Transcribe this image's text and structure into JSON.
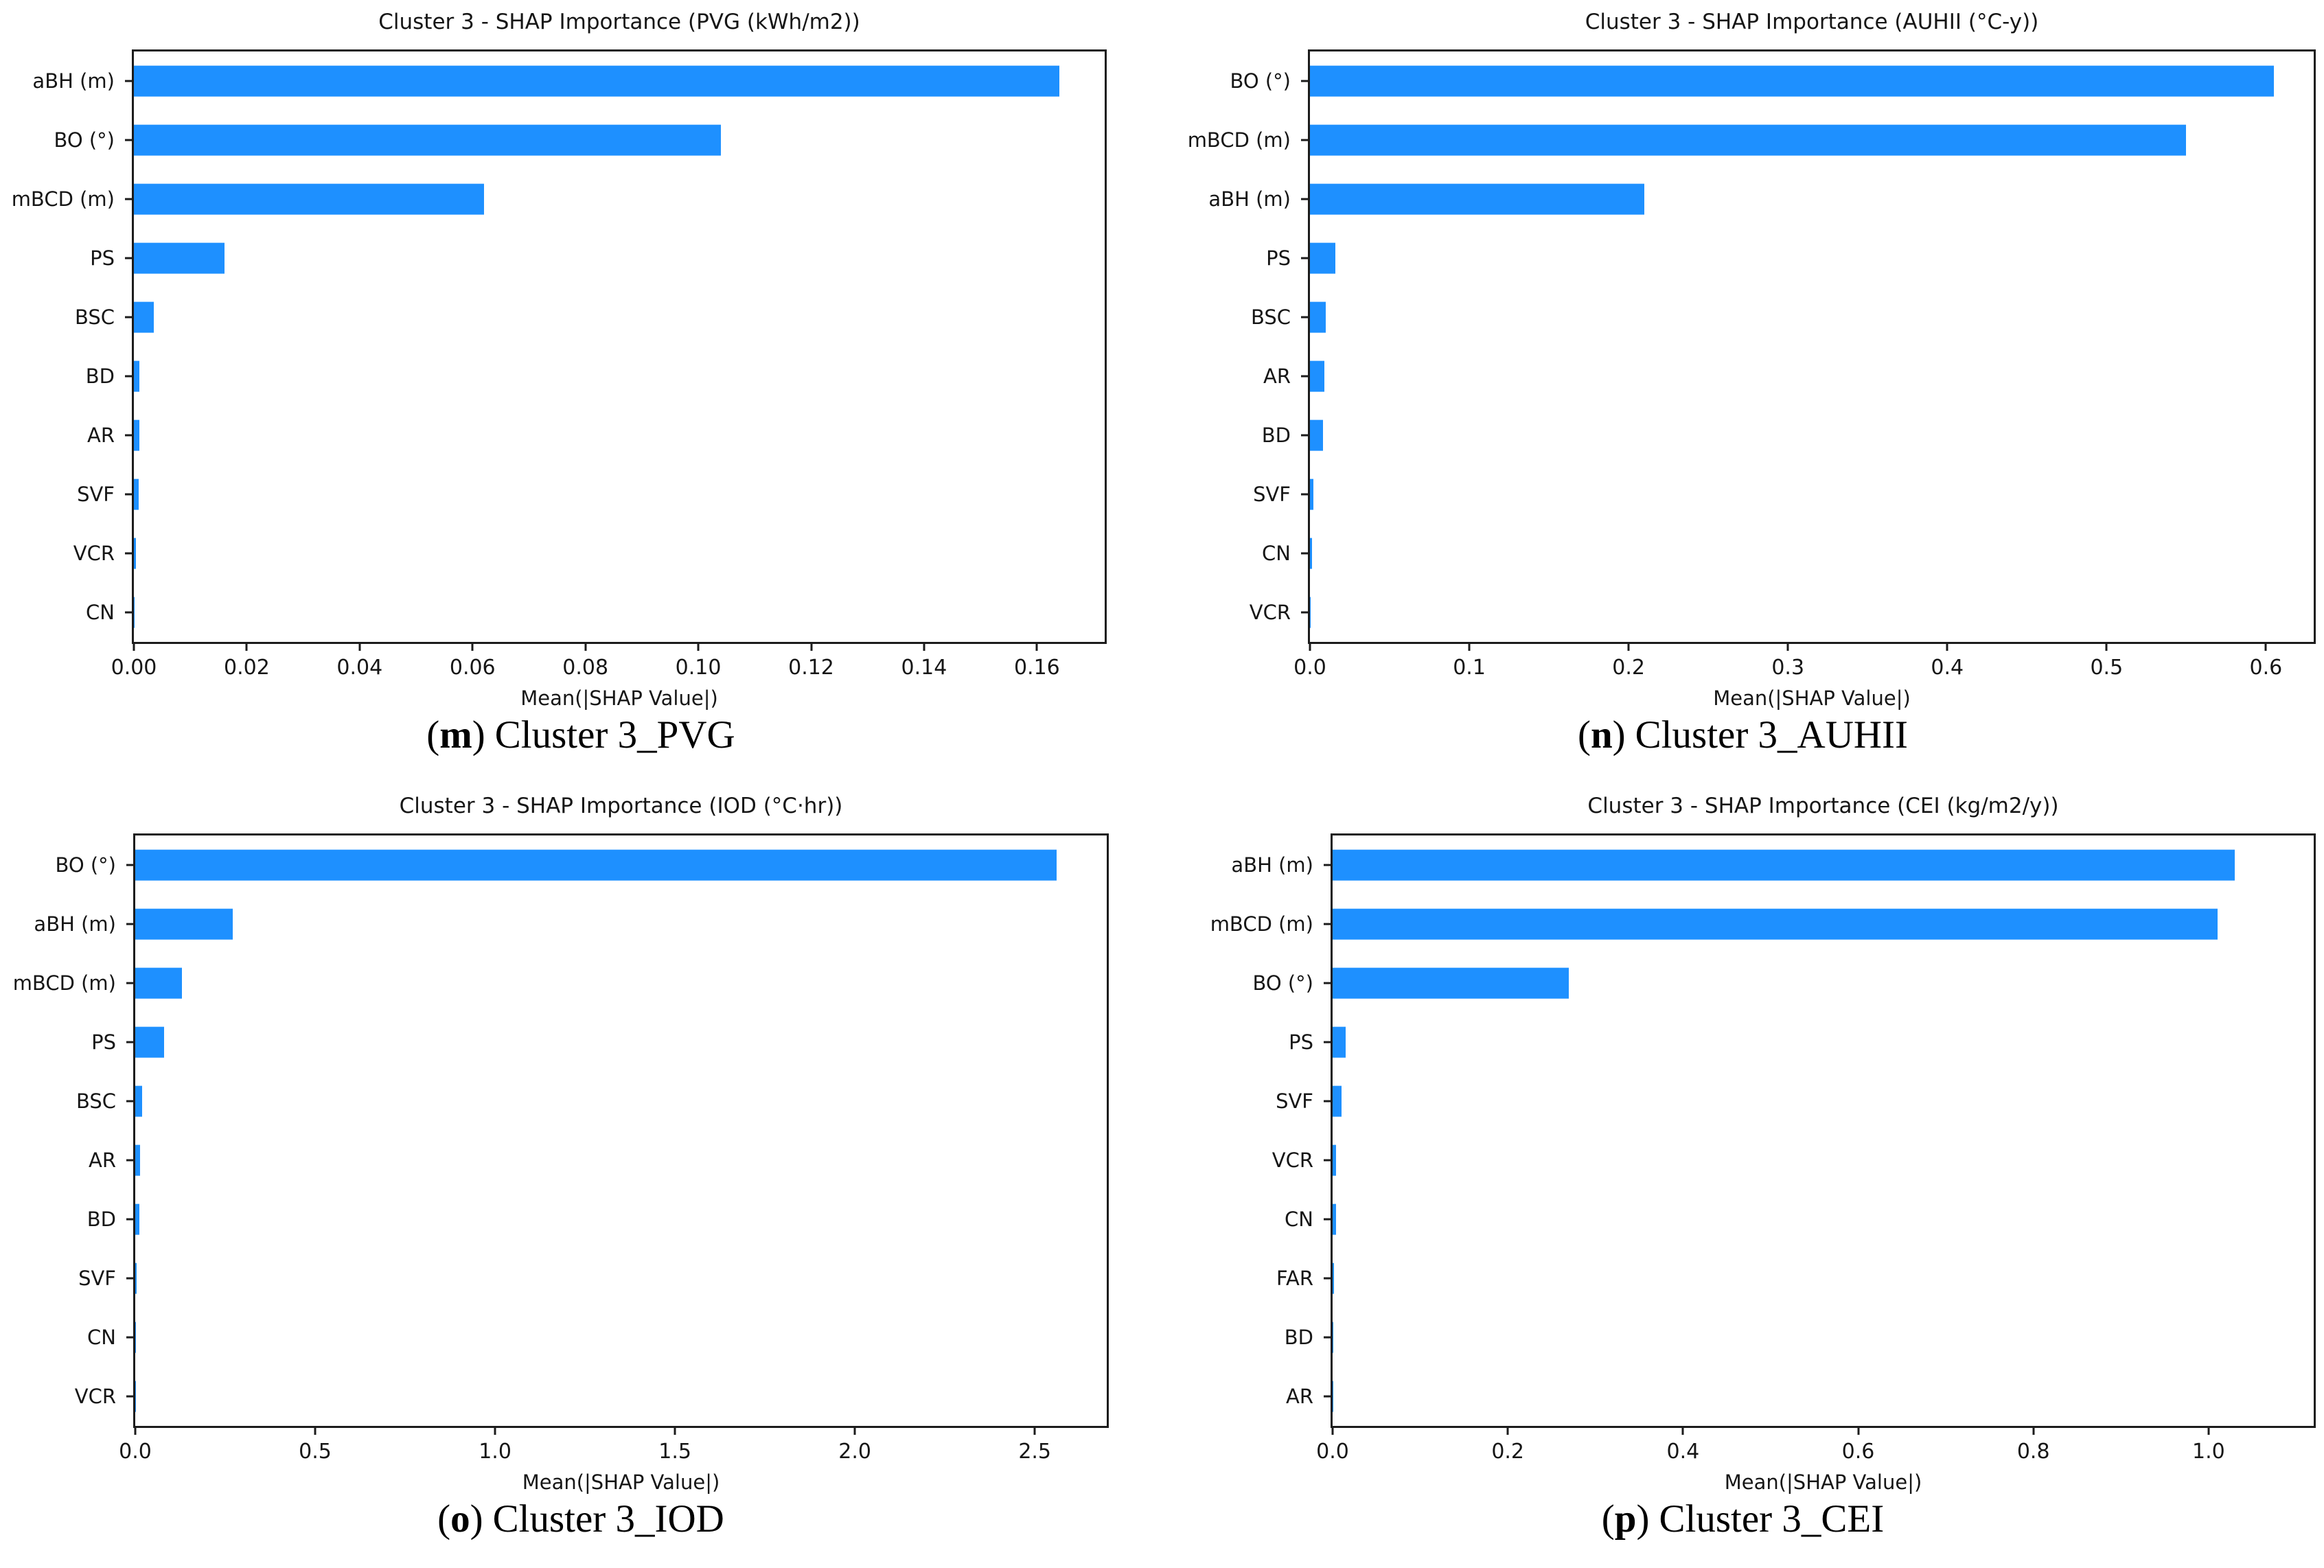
{
  "page": {
    "background": "#ffffff",
    "text_color": "#161616",
    "axis_color": "#1c1c1c"
  },
  "chart_data": [
    {
      "id": "pvg",
      "type": "bar",
      "orientation": "horizontal",
      "title": "Cluster 3 - SHAP Importance (PVG (kWh/m2))",
      "xlabel": "Mean(|SHAP Value|)",
      "categories": [
        "aBH (m)",
        "BO (°)",
        "mBCD (m)",
        "PS",
        "BSC",
        "BD",
        "AR",
        "SVF",
        "VCR",
        "CN"
      ],
      "values": [
        0.164,
        0.104,
        0.062,
        0.016,
        0.0035,
        0.001,
        0.001,
        0.0008,
        0.0004,
        0.0001
      ],
      "xlim": [
        0,
        0.172
      ],
      "xticks": [
        0,
        0.02,
        0.04,
        0.06,
        0.08,
        0.1,
        0.12,
        0.14,
        0.16
      ],
      "xtick_labels": [
        "0.00",
        "0.02",
        "0.04",
        "0.06",
        "0.08",
        "0.10",
        "0.12",
        "0.14",
        "0.16"
      ],
      "grid": false,
      "bar_color": "#1E90FF",
      "caption": {
        "open": "(",
        "letter": "m",
        "close": ")",
        "label": "Cluster 3_PVG"
      }
    },
    {
      "id": "auhii",
      "type": "bar",
      "orientation": "horizontal",
      "title": "Cluster 3 - SHAP Importance (AUHII (°C-y))",
      "xlabel": "Mean(|SHAP Value|)",
      "categories": [
        "BO (°)",
        "mBCD (m)",
        "aBH (m)",
        "PS",
        "BSC",
        "AR",
        "BD",
        "SVF",
        "CN",
        "VCR"
      ],
      "values": [
        0.605,
        0.55,
        0.21,
        0.016,
        0.01,
        0.009,
        0.008,
        0.002,
        0.0015,
        0.0005
      ],
      "xlim": [
        0,
        0.63
      ],
      "xticks": [
        0,
        0.1,
        0.2,
        0.3,
        0.4,
        0.5,
        0.6
      ],
      "xtick_labels": [
        "0.0",
        "0.1",
        "0.2",
        "0.3",
        "0.4",
        "0.5",
        "0.6"
      ],
      "grid": false,
      "bar_color": "#1E90FF",
      "caption": {
        "open": "(",
        "letter": "n",
        "close": ")",
        "label": "Cluster 3_AUHII"
      }
    },
    {
      "id": "iod",
      "type": "bar",
      "orientation": "horizontal",
      "title": "Cluster 3 - SHAP Importance (IOD (°C·hr))",
      "xlabel": "Mean(|SHAP Value|)",
      "categories": [
        "BO (°)",
        "aBH (m)",
        "mBCD (m)",
        "PS",
        "BSC",
        "AR",
        "BD",
        "SVF",
        "CN",
        "VCR"
      ],
      "values": [
        2.56,
        0.27,
        0.13,
        0.08,
        0.02,
        0.013,
        0.012,
        0.004,
        0.002,
        0.001
      ],
      "xlim": [
        0,
        2.7
      ],
      "xticks": [
        0,
        0.5,
        1.0,
        1.5,
        2.0,
        2.5
      ],
      "xtick_labels": [
        "0.0",
        "0.5",
        "1.0",
        "1.5",
        "2.0",
        "2.5"
      ],
      "grid": false,
      "bar_color": "#1E90FF",
      "caption": {
        "open": "(",
        "letter": "o",
        "close": ")",
        "label": "Cluster 3_IOD"
      }
    },
    {
      "id": "cei",
      "type": "bar",
      "orientation": "horizontal",
      "title": "Cluster 3 - SHAP Importance (CEI (kg/m2/y))",
      "xlabel": "Mean(|SHAP Value|)",
      "categories": [
        "aBH (m)",
        "mBCD (m)",
        "BO (°)",
        "PS",
        "SVF",
        "VCR",
        "CN",
        "FAR",
        "BD",
        "AR"
      ],
      "values": [
        1.03,
        1.01,
        0.27,
        0.015,
        0.01,
        0.004,
        0.004,
        0.0015,
        0.0008,
        0.0004
      ],
      "xlim": [
        0,
        1.12
      ],
      "xticks": [
        0,
        0.2,
        0.4,
        0.6,
        0.8,
        1.0
      ],
      "xtick_labels": [
        "0.0",
        "0.2",
        "0.4",
        "0.6",
        "0.8",
        "1.0"
      ],
      "grid": false,
      "bar_color": "#1E90FF",
      "caption": {
        "open": "(",
        "letter": "p",
        "close": ")",
        "label": "Cluster 3_CEI"
      }
    }
  ]
}
